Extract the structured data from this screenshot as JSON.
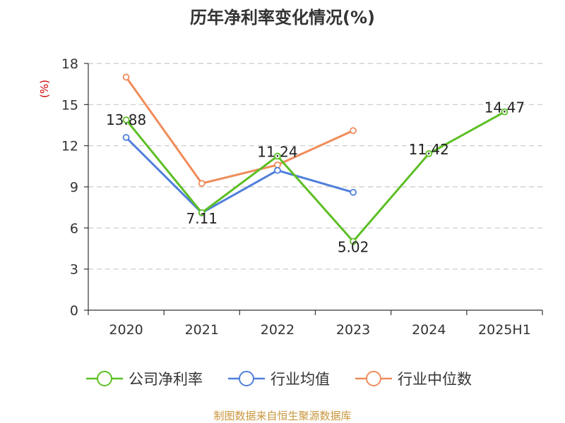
{
  "chart_data": {
    "type": "line",
    "title": "历年净利率变化情况(%)",
    "ylabel": "(%)",
    "xlabel": "",
    "categories": [
      "2020",
      "2021",
      "2022",
      "2023",
      "2024",
      "2025H1"
    ],
    "ylim": [
      0,
      18
    ],
    "yticks": [
      "0",
      "3",
      "6",
      "9",
      "12",
      "15",
      "18"
    ],
    "grid": true,
    "legend_position": "bottom",
    "series": [
      {
        "name": "公司净利率",
        "color": "#5cbf24",
        "values": [
          13.88,
          7.11,
          11.24,
          5.02,
          11.42,
          14.47
        ],
        "labels": [
          "13.88",
          "7.11",
          "11.24",
          "5.02",
          "11.42",
          "14.47"
        ]
      },
      {
        "name": "行业均值",
        "color": "#4f7fdb",
        "values": [
          12.6,
          7.1,
          10.2,
          8.6,
          null,
          null
        ]
      },
      {
        "name": "行业中位数",
        "color": "#f08c5a",
        "values": [
          17.0,
          9.25,
          10.6,
          13.1,
          null,
          null
        ]
      }
    ]
  },
  "source": "制图数据来自恒生聚源数据库"
}
